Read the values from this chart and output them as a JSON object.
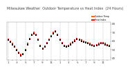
{
  "background_color": "#ffffff",
  "plot_bg_color": "#ffffff",
  "grid_color": "#aaaaaa",
  "series_outdoor": {
    "label": "Outdoor Temp",
    "color": "#ff0000",
    "marker": "s",
    "markersize": 1.5,
    "x": [
      0,
      1,
      2,
      3,
      4,
      5,
      6,
      7,
      8,
      9,
      10,
      11,
      12,
      13,
      14,
      15,
      16,
      17,
      18,
      19,
      20,
      21,
      22,
      23,
      24,
      25,
      26,
      27,
      28,
      29,
      30,
      31,
      32,
      33,
      34,
      35,
      36,
      37,
      38,
      39,
      40,
      41,
      42,
      43,
      44,
      45,
      46,
      47
    ],
    "y": [
      62,
      60,
      55,
      52,
      48,
      45,
      52,
      58,
      68,
      72,
      65,
      58,
      60,
      72,
      70,
      60,
      55,
      55,
      58,
      60,
      58,
      56,
      55,
      54,
      55,
      57,
      58,
      60,
      62,
      63,
      64,
      63,
      62,
      61,
      60,
      59,
      58,
      57,
      56,
      55,
      55,
      56,
      57,
      58,
      58,
      57,
      56,
      55
    ]
  },
  "series_heat": {
    "label": "Heat Index",
    "color": "#000000",
    "marker": "s",
    "markersize": 1.5,
    "x": [
      0,
      1,
      2,
      3,
      4,
      5,
      6,
      7,
      8,
      9,
      10,
      11,
      12,
      13,
      14,
      15,
      16,
      17,
      18,
      19,
      20,
      21,
      22,
      23,
      24,
      25,
      26,
      27,
      28,
      29,
      30,
      31,
      32,
      33,
      34,
      35,
      36,
      37,
      38,
      39,
      40,
      41,
      42,
      43,
      44,
      45,
      46,
      47
    ],
    "y": [
      62,
      60,
      55,
      52,
      48,
      45,
      52,
      58,
      68,
      72,
      65,
      58,
      60,
      72,
      70,
      60,
      55,
      55,
      58,
      60,
      58,
      56,
      55,
      54,
      55,
      57,
      58,
      60,
      62,
      63,
      64,
      63,
      62,
      61,
      60,
      59,
      58,
      57,
      56,
      55,
      55,
      56,
      57,
      58,
      58,
      57,
      56,
      55
    ]
  },
  "legend_outdoor_color": "#ff6600",
  "legend_heat_color": "#ff0000",
  "legend_box_color": "#ff0000",
  "xlim": [
    -0.5,
    47.5
  ],
  "ylim": [
    38,
    82
  ],
  "ytick_positions": [
    40,
    50,
    60,
    70,
    80
  ],
  "ytick_labels": [
    "40",
    "50",
    "60",
    "70",
    "80"
  ],
  "xtick_positions": [
    0,
    2,
    4,
    6,
    8,
    10,
    12,
    14,
    16,
    18,
    20,
    22,
    24,
    26,
    28,
    30,
    32,
    34,
    36,
    38,
    40,
    42,
    44,
    46
  ],
  "xtick_labels": [
    "1",
    "",
    "3",
    "",
    "5",
    "",
    "7",
    "",
    "9",
    "",
    "11",
    "",
    "1",
    "",
    "3",
    "",
    "5",
    "",
    "7",
    "",
    "9",
    "",
    "11",
    ""
  ],
  "tick_fontsize": 3.0,
  "title_fontsize": 3.5,
  "vgrid_positions": [
    0,
    4,
    8,
    12,
    16,
    20,
    24,
    28,
    32,
    36,
    40,
    44
  ]
}
